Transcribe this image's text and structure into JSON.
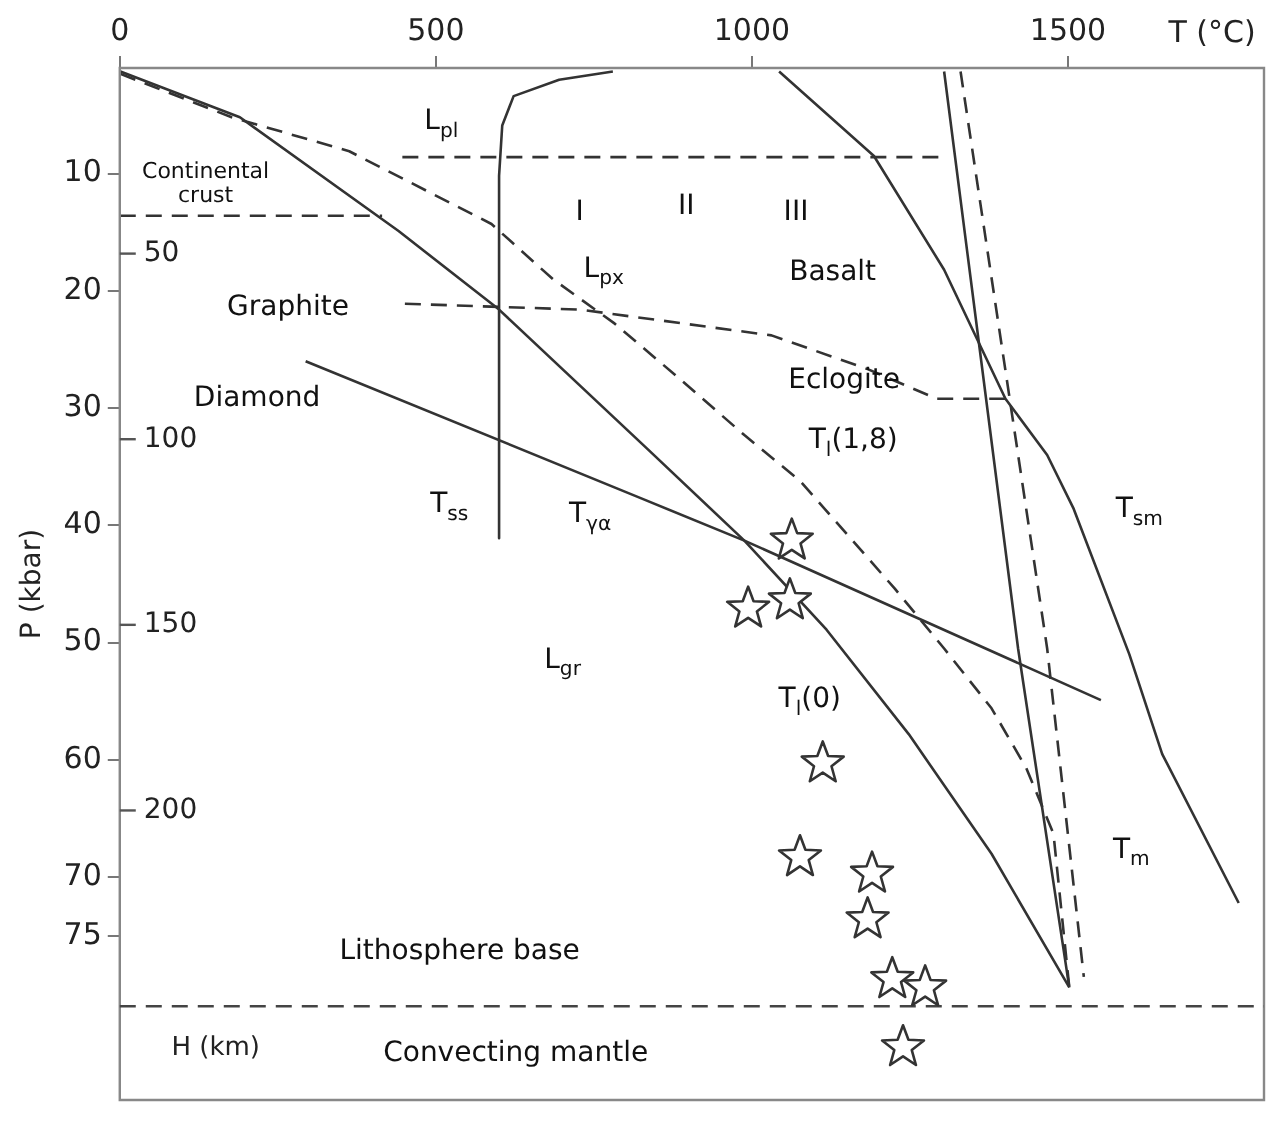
{
  "chart_data": {
    "type": "line",
    "xlabel": "T (°C)",
    "ylabel": "P (kbar)",
    "y2label": "H (km)",
    "xlim": [
      0,
      1810
    ],
    "xticks": [
      0,
      500,
      1000,
      1500
    ],
    "ylim": [
      89,
      1
    ],
    "yticks": [
      10,
      20,
      30,
      40,
      50,
      60,
      70,
      75
    ],
    "y2lim": [
      278,
      0
    ],
    "y2ticks": [
      50,
      100,
      150,
      200
    ],
    "grid": false,
    "legend": false,
    "marker": "none",
    "line_style": "solid",
    "series": [
      {
        "color": "#333333",
        "x": [
          1,
          190,
          441,
          600,
          835,
          988,
          1118,
          1248,
          1379,
          1502
        ],
        "values": [
          1.3,
          5.2,
          14.9,
          21.6,
          33.5,
          41.3,
          48.9,
          57.8,
          68.0,
          79.4
        ]
      },
      {
        "color": "#333333",
        "x": [
          294,
          825,
          988,
          1552
        ],
        "values": [
          26.0,
          37.7,
          41.3,
          54.9
        ]
      },
      {
        "color": "#333333",
        "line_style": "dashed",
        "x": [
          1,
          177,
          363,
          588,
          685,
          783,
          890,
          988,
          1076,
          1151,
          1226,
          1304,
          1379,
          1434,
          1477,
          1502
        ],
        "values": [
          1.5,
          5.2,
          8.1,
          14.3,
          19.0,
          22.8,
          27.7,
          32.3,
          36.2,
          40.8,
          45.4,
          50.5,
          55.6,
          60.7,
          66.3,
          79.4
        ]
      },
      {
        "color": "#333333",
        "x": [
          780,
          695,
          623,
          605,
          600,
          600
        ],
        "values": [
          1.3,
          2.0,
          3.4,
          5.9,
          10.2,
          41.1
        ]
      },
      {
        "color": "#333333",
        "x": [
          1043,
          1193,
          1304,
          1401,
          1467,
          1509,
          1597,
          1649,
          1770
        ],
        "values": [
          1.3,
          8.5,
          18.2,
          29.2,
          34.0,
          38.6,
          51.0,
          59.5,
          72.2
        ]
      },
      {
        "color": "#333333",
        "x": [
          1304,
          1421,
          1502
        ],
        "values": [
          1.3,
          50.5,
          79.4
        ]
      },
      {
        "color": "#333333",
        "line_style": "dashed",
        "x": [
          1330,
          1467,
          1525
        ],
        "values": [
          1.3,
          50.5,
          78.5
        ]
      },
      {
        "color": "#333333",
        "line_style": "dashed",
        "x": [
          447,
          1307
        ],
        "values": [
          8.6,
          8.6
        ]
      },
      {
        "color": "#333333",
        "line_style": "dashed",
        "x": [
          0,
          415
        ],
        "values": [
          13.6,
          13.6
        ]
      },
      {
        "color": "#333333",
        "line_style": "dashed",
        "x": [
          451,
          728,
          1031,
          1184,
          1292,
          1401
        ],
        "values": [
          21.1,
          21.6,
          23.8,
          26.7,
          29.2,
          29.2
        ]
      },
      {
        "type": "scatter",
        "marker": "star",
        "color": "#333333",
        "x": [
          1063,
          994,
          1060,
          1112,
          1076,
          1190,
          1183,
          1222,
          1274,
          1239
        ],
        "values": [
          41.3,
          47.1,
          46.4,
          60.3,
          68.3,
          69.7,
          73.6,
          78.7,
          79.4,
          84.5
        ]
      }
    ],
    "ref_lines": [
      {
        "axis": "y",
        "value": 81,
        "line_style": "dashed",
        "color": "#444444"
      }
    ],
    "annotations": [
      "L$_{pl}$",
      "Continental\ncrust",
      "I",
      "II",
      "III",
      "L$_{px}$",
      "Basalt",
      "Graphite",
      "Eclogite",
      "T$_{l}$(1,8)",
      "Diamond",
      "T$_{ss}$",
      "T$_{γα}$",
      "T$_{sm}$",
      "L$_{gr}$",
      "T$_{l}$(0)",
      "T$_{m}$",
      "Lithosphere base",
      "Convecting mantle"
    ]
  }
}
